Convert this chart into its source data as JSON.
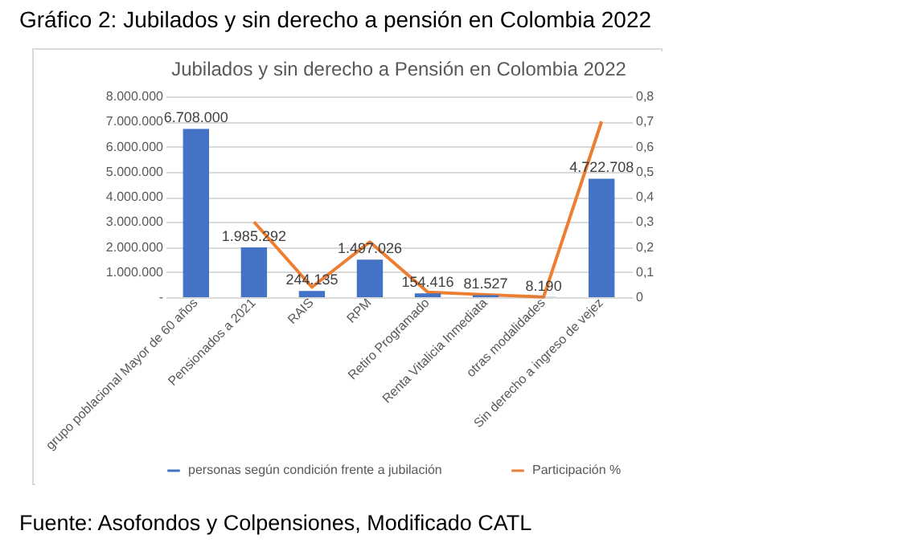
{
  "chart_data": {
    "type": "bar",
    "title": "Jubilados y sin derecho a Pensión en Colombia 2022",
    "annotations": [
      "Gráfico 2: Jubilados y sin derecho a pensión en Colombia 2022",
      "Fuente: Asofondos y Colpensiones, Modificado CATL"
    ],
    "categories": [
      "grupo poblacional Mayor de 60 años",
      "Pensionados a 2021",
      "RAIS",
      "RPM",
      "Retiro Programado",
      "Renta Vitalicia Inmediata",
      "otras modalidades",
      "Sin derecho a ingreso de vejez"
    ],
    "series": [
      {
        "name": "personas según condición frente a jubilación",
        "color": "#4472c4",
        "values": [
          6708000,
          1985292,
          244135,
          1497026,
          154416,
          81527,
          8190,
          4722708
        ],
        "value_labels": [
          "6.708.000",
          "1.985.292",
          "244.135",
          "1.497.026",
          "154.416",
          "81.527",
          "8.190",
          "4.722.708"
        ]
      },
      {
        "name": "Participación %",
        "color": "#ed7d31",
        "type": "line",
        "axis": "y2",
        "values": [
          null,
          0.3,
          0.04,
          0.22,
          0.02,
          0.01,
          0.001,
          0.7
        ]
      }
    ],
    "ylim": [
      0,
      8000000
    ],
    "yticks": [
      {
        "value": 0,
        "label": "-"
      },
      {
        "value": 1000000,
        "label": "1.000.000"
      },
      {
        "value": 2000000,
        "label": "2.000.000"
      },
      {
        "value": 3000000,
        "label": "3.000.000"
      },
      {
        "value": 4000000,
        "label": "4.000.000"
      },
      {
        "value": 5000000,
        "label": "5.000.000"
      },
      {
        "value": 6000000,
        "label": "6.000.000"
      },
      {
        "value": 7000000,
        "label": "7.000.000"
      },
      {
        "value": 8000000,
        "label": "8.000.000"
      }
    ],
    "y2lim": [
      0,
      0.8
    ],
    "y2ticks": [
      0,
      {
        "value": 0.1,
        "label": "0,1"
      },
      {
        "value": 0.2,
        "label": "0,2"
      },
      {
        "value": 0.3,
        "label": "0,3"
      },
      {
        "value": 0.4,
        "label": "0,4"
      },
      {
        "value": 0.5,
        "label": "0,5"
      },
      {
        "value": 0.6,
        "label": "0,6"
      },
      {
        "value": 0.7,
        "label": "0,7"
      },
      {
        "value": 0.8,
        "label": "0,8"
      }
    ],
    "grid": "y",
    "legend": "bottom"
  }
}
